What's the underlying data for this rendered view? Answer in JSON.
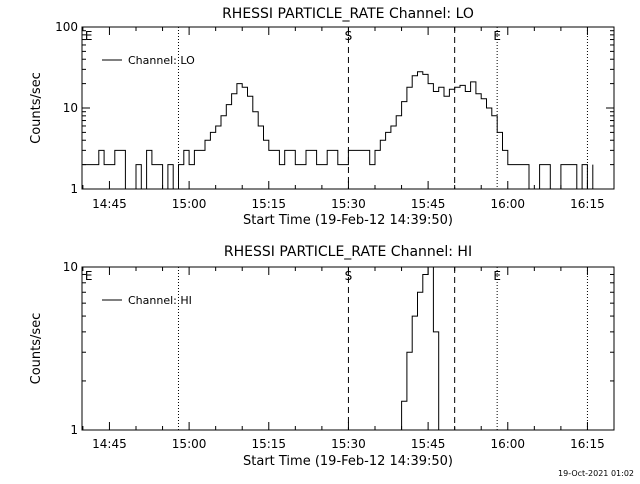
{
  "footer": {
    "timestamp": "19-Oct-2021 01:02"
  },
  "chart_data": [
    {
      "type": "line",
      "title": "RHESSI PARTICLE_RATE Channel: LO",
      "xlabel": "Start Time (19-Feb-12 14:39:50)",
      "ylabel": "Counts/sec",
      "yscale": "log",
      "ylim": [
        1,
        100
      ],
      "yticks": [
        1,
        10,
        100
      ],
      "ytick_labels": [
        "1",
        "10",
        "100"
      ],
      "xlim": [
        "14:39:50",
        "16:20:00"
      ],
      "xticks": [
        "14:45",
        "15:00",
        "15:15",
        "15:30",
        "15:45",
        "16:00",
        "16:15"
      ],
      "grid": false,
      "legend": {
        "position": "top-left",
        "entries": [
          "Channel: LO"
        ]
      },
      "markers": [
        {
          "time": "14:40",
          "label": "E",
          "style": "none"
        },
        {
          "time": "14:58",
          "label": "",
          "style": "dotted"
        },
        {
          "time": "15:30",
          "label": "S",
          "style": "dashed"
        },
        {
          "time": "15:50",
          "label": "",
          "style": "dashed"
        },
        {
          "time": "15:58",
          "label": "E",
          "style": "dotted"
        },
        {
          "time": "16:15",
          "label": "",
          "style": "dotted"
        }
      ],
      "series": [
        {
          "name": "Channel: LO",
          "x": [
            "14:40",
            "14:42",
            "14:43",
            "14:44",
            "14:45",
            "14:46",
            "14:48",
            "14:50",
            "14:51",
            "14:52",
            "14:53",
            "14:54",
            "14:55",
            "14:56",
            "14:57",
            "14:58",
            "14:59",
            "15:00",
            "15:01",
            "15:02",
            "15:03",
            "15:04",
            "15:05",
            "15:06",
            "15:07",
            "15:08",
            "15:09",
            "15:10",
            "15:11",
            "15:12",
            "15:13",
            "15:14",
            "15:15",
            "15:16",
            "15:17",
            "15:18",
            "15:19",
            "15:20",
            "15:22",
            "15:24",
            "15:26",
            "15:28",
            "15:30",
            "15:31",
            "15:32",
            "15:34",
            "15:35",
            "15:36",
            "15:37",
            "15:38",
            "15:39",
            "15:40",
            "15:41",
            "15:42",
            "15:43",
            "15:44",
            "15:45",
            "15:46",
            "15:47",
            "15:48",
            "15:49",
            "15:50",
            "15:51",
            "15:52",
            "15:53",
            "15:54",
            "15:55",
            "15:56",
            "15:57",
            "15:58",
            "15:59",
            "16:00",
            "16:01",
            "16:02",
            "16:04",
            "16:06",
            "16:08",
            "16:10",
            "16:12",
            "16:13",
            "16:14",
            "16:15",
            "16:16"
          ],
          "y": [
            2,
            2,
            3,
            2,
            2,
            3,
            1,
            2,
            1,
            3,
            2,
            2,
            1,
            2,
            1,
            2,
            3,
            2,
            3,
            3,
            4,
            5,
            6,
            8,
            11,
            15,
            20,
            18,
            14,
            9,
            6,
            4,
            3,
            3,
            2,
            3,
            3,
            2,
            3,
            2,
            3,
            2,
            3,
            3,
            3,
            2,
            3,
            4,
            5,
            6,
            8,
            12,
            18,
            25,
            28,
            26,
            20,
            16,
            18,
            14,
            17,
            18,
            19,
            16,
            21,
            15,
            13,
            10,
            8,
            5,
            3,
            2,
            2,
            2,
            1,
            2,
            1,
            2,
            2,
            1,
            2,
            1,
            2
          ]
        }
      ]
    },
    {
      "type": "line",
      "title": "RHESSI PARTICLE_RATE Channel: HI",
      "xlabel": "Start Time (19-Feb-12 14:39:50)",
      "ylabel": "Counts/sec",
      "yscale": "log",
      "ylim": [
        1,
        10
      ],
      "yticks": [
        1,
        10
      ],
      "ytick_labels": [
        "1",
        "10"
      ],
      "xlim": [
        "14:39:50",
        "16:20:00"
      ],
      "xticks": [
        "14:45",
        "15:00",
        "15:15",
        "15:30",
        "15:45",
        "16:00",
        "16:15"
      ],
      "grid": false,
      "legend": {
        "position": "top-left",
        "entries": [
          "Channel: HI"
        ]
      },
      "markers": [
        {
          "time": "14:40",
          "label": "E",
          "style": "none"
        },
        {
          "time": "14:58",
          "label": "",
          "style": "dotted"
        },
        {
          "time": "15:30",
          "label": "S",
          "style": "dashed"
        },
        {
          "time": "15:50",
          "label": "",
          "style": "dashed"
        },
        {
          "time": "15:58",
          "label": "E",
          "style": "dotted"
        },
        {
          "time": "16:15",
          "label": "",
          "style": "dotted"
        }
      ],
      "series": [
        {
          "name": "Channel: HI",
          "x": [
            "15:40",
            "15:40",
            "15:41",
            "15:42",
            "15:43",
            "15:44",
            "15:45",
            "15:46",
            "15:46",
            "15:47",
            "15:47"
          ],
          "y": [
            1,
            1.5,
            3,
            5,
            7,
            9,
            10,
            8,
            4,
            2,
            1
          ]
        }
      ]
    }
  ]
}
